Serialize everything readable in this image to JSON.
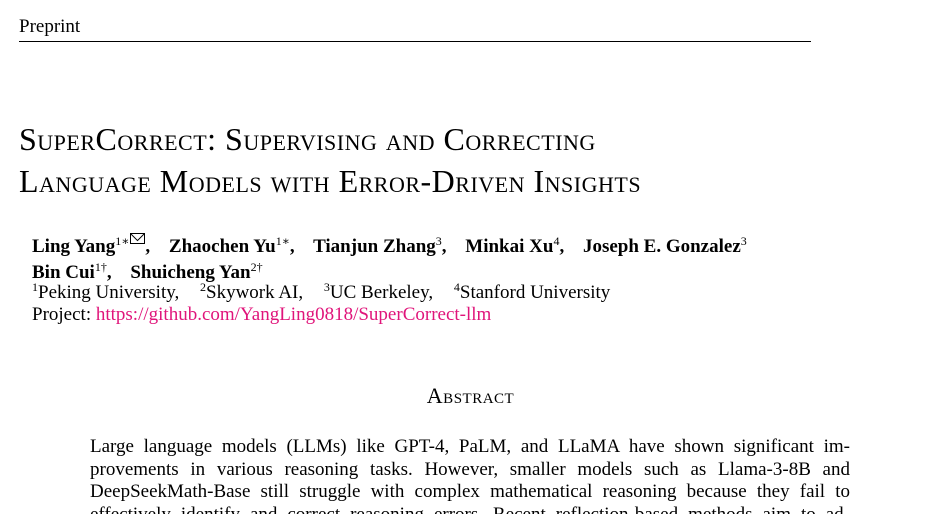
{
  "running_head": "Preprint",
  "title": {
    "lines": [
      "SuperCorrect: Supervising and Correcting",
      "Language Models with Error-Driven Insights"
    ]
  },
  "authors": [
    {
      "name": "Ling Yang",
      "marks": "1∗",
      "mail_icon": "envelope-icon",
      "sep": ","
    },
    {
      "name": "Zhaochen Yu",
      "marks": "1∗",
      "sep": ","
    },
    {
      "name": "Tianjun Zhang",
      "marks": "3",
      "sep": ","
    },
    {
      "name": "Minkai Xu",
      "marks": "4",
      "sep": ","
    },
    {
      "name": "Joseph E. Gonzalez",
      "marks": "3",
      "sep": ""
    },
    {
      "name": "Bin Cui",
      "marks": "1†",
      "sep": ","
    },
    {
      "name": "Shuicheng Yan",
      "marks": "2†",
      "sep": ""
    }
  ],
  "affiliations": [
    {
      "mark": "1",
      "name": "Peking University,"
    },
    {
      "mark": "2",
      "name": "Skywork AI,"
    },
    {
      "mark": "3",
      "name": "UC Berkeley,"
    },
    {
      "mark": "4",
      "name": "Stanford University"
    }
  ],
  "project": {
    "label": "Project:",
    "url": "https://github.com/YangLing0818/SuperCorrect-llm",
    "link_color": "#e0147a"
  },
  "abstract": {
    "heading": "Abstract",
    "lines": [
      "Large language models (LLMs) like GPT-4, PaLM, and LLaMA have shown significant im-",
      "provements in various reasoning tasks. However, smaller models such as Llama-3-8B and",
      "DeepSeekMath-Base still struggle with complex mathematical reasoning because they fail to",
      "effectively identify and correct reasoning errors. Recent reflection-based methods aim to ad-"
    ]
  }
}
